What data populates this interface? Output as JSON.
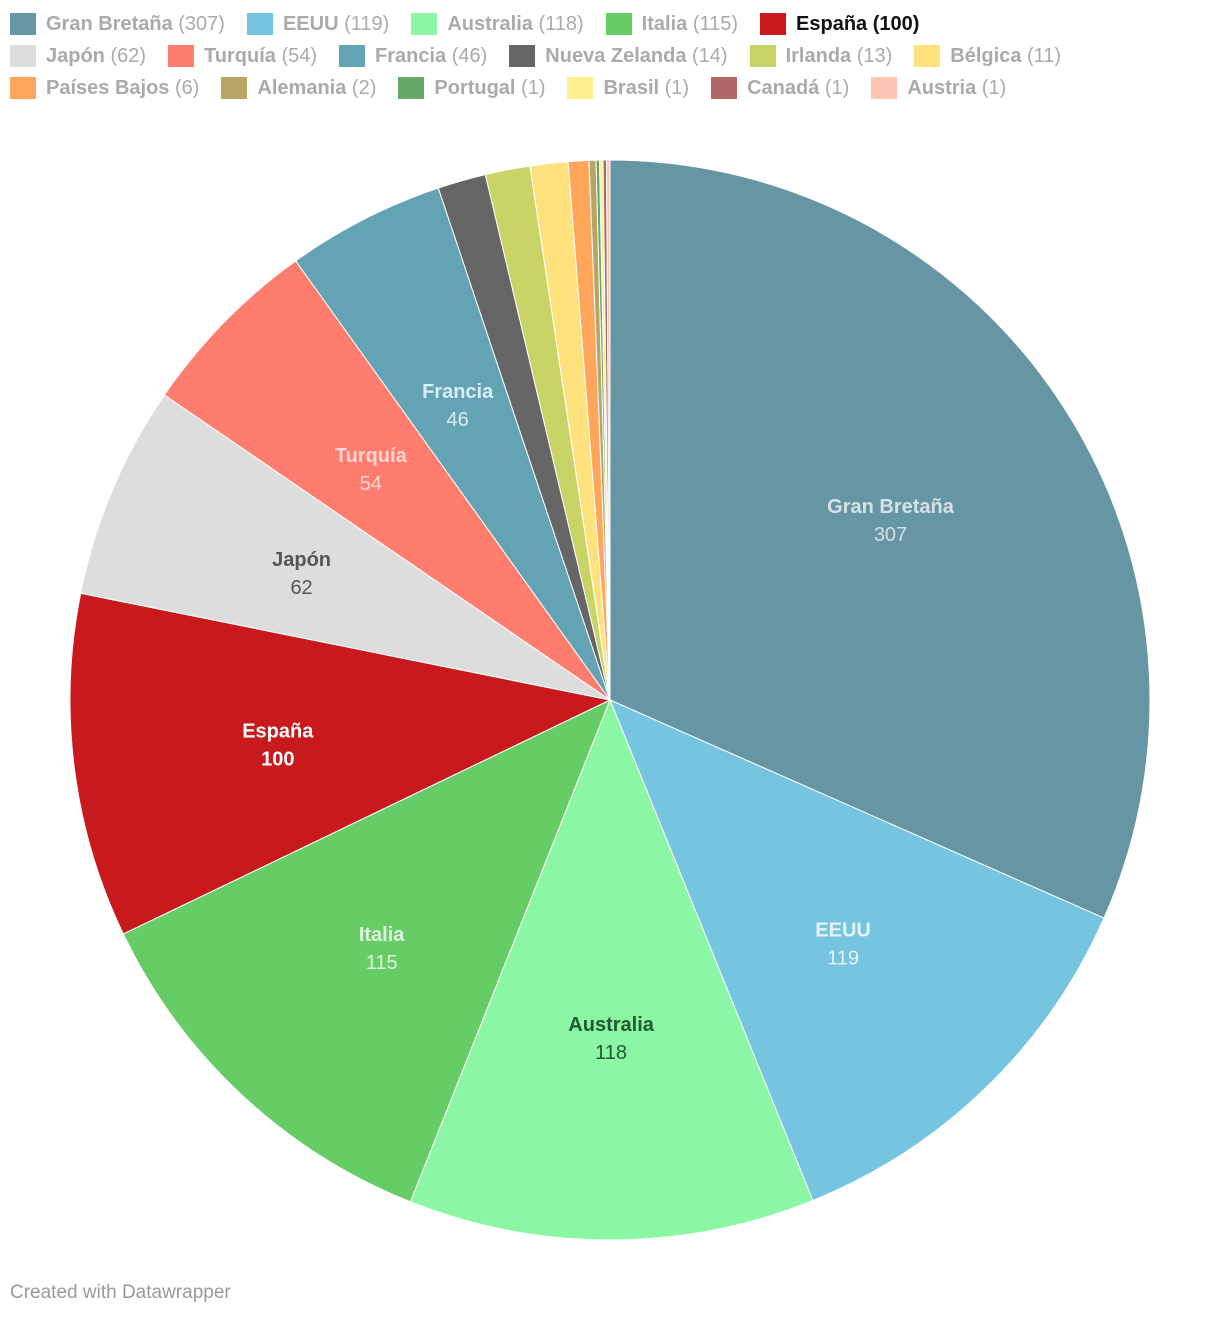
{
  "chart_data": {
    "type": "pie",
    "slices": [
      {
        "name": "Gran Bretaña",
        "value": 307,
        "color": "#6696a4",
        "label_color": "#d5e2e6",
        "highlight": false
      },
      {
        "name": "EEUU",
        "value": 119,
        "color": "#75c4e0",
        "label_color": "#e6f4fa",
        "highlight": false
      },
      {
        "name": "Australia",
        "value": 118,
        "color": "#8bf7a4",
        "label_color": "#1f5a30",
        "highlight": false
      },
      {
        "name": "Italia",
        "value": 115,
        "color": "#66cc66",
        "label_color": "#dff5df",
        "highlight": false
      },
      {
        "name": "España",
        "value": 100,
        "color": "#c8191c",
        "label_color": "#ffffff",
        "highlight": true
      },
      {
        "name": "Japón",
        "value": 62,
        "color": "#dddddd",
        "label_color": "#555555",
        "highlight": false
      },
      {
        "name": "Turquía",
        "value": 54,
        "color": "#ff7d6e",
        "label_color": "#ffd6d0",
        "highlight": false
      },
      {
        "name": "Francia",
        "value": 46,
        "color": "#64a3b4",
        "label_color": "#dbeef3",
        "highlight": false
      },
      {
        "name": "Nueva Zelanda",
        "value": 14,
        "color": "#666666",
        "label_color": "#ffffff",
        "highlight": false
      },
      {
        "name": "Irlanda",
        "value": 13,
        "color": "#c8d466",
        "label_color": "#333333",
        "highlight": false
      },
      {
        "name": "Bélgica",
        "value": 11,
        "color": "#ffe27d",
        "label_color": "#333333",
        "highlight": false
      },
      {
        "name": "Países Bajos",
        "value": 6,
        "color": "#ffa65a",
        "label_color": "#333333",
        "highlight": false
      },
      {
        "name": "Alemania",
        "value": 2,
        "color": "#b8a566",
        "label_color": "#333333",
        "highlight": false
      },
      {
        "name": "Portugal",
        "value": 1,
        "color": "#66a866",
        "label_color": "#333333",
        "highlight": false
      },
      {
        "name": "Brasil",
        "value": 1,
        "color": "#fff08f",
        "label_color": "#333333",
        "highlight": false
      },
      {
        "name": "Canadá",
        "value": 1,
        "color": "#b06666",
        "label_color": "#ffffff",
        "highlight": false
      },
      {
        "name": "Austria",
        "value": 1,
        "color": "#ffc4b4",
        "label_color": "#333333",
        "highlight": false
      }
    ],
    "legend_placement": "top",
    "inline_labels_for": [
      "Gran Bretaña",
      "EEUU",
      "Australia",
      "Italia",
      "España",
      "Japón",
      "Turquía",
      "Francia"
    ]
  },
  "legend_rows": [
    [
      "Gran Bretaña",
      "EEUU",
      "Australia",
      "Italia",
      "España"
    ],
    [
      "Japón",
      "Turquía",
      "Francia",
      "Nueva Zelanda",
      "Irlanda",
      "Bélgica"
    ],
    [
      "Países Bajos",
      "Alemania",
      "Portugal",
      "Brasil",
      "Canadá",
      "Austria"
    ]
  ],
  "footer": {
    "credit": "Created with Datawrapper"
  }
}
